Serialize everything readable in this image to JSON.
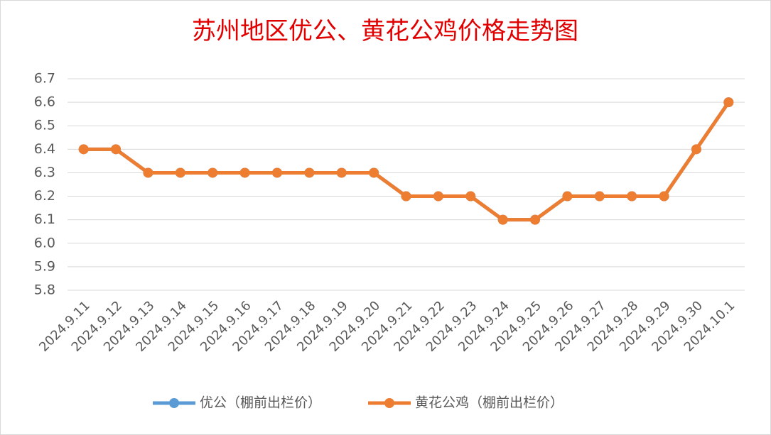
{
  "chart_data": {
    "type": "line",
    "title": "苏州地区优公、黄花公鸡价格走势图",
    "categories": [
      "2024.9.11",
      "2024.9.12",
      "2024.9.13",
      "2024.9.14",
      "2024.9.15",
      "2024.9.16",
      "2024.9.17",
      "2024.9.18",
      "2024.9.19",
      "2024.9.20",
      "2024.9.21",
      "2024.9.22",
      "2024.9.23",
      "2024.9.24",
      "2024.9.25",
      "2024.9.26",
      "2024.9.27",
      "2024.9.28",
      "2024.9.29",
      "2024.9.30",
      "2024.10.1"
    ],
    "series": [
      {
        "name": "优公（棚前出栏价）",
        "color": "#5b9bd5",
        "values": [
          6.4,
          6.4,
          6.3,
          6.3,
          6.3,
          6.3,
          6.3,
          6.3,
          6.3,
          6.3,
          6.2,
          6.2,
          6.2,
          6.1,
          6.1,
          6.2,
          6.2,
          6.2,
          6.2,
          6.4,
          6.6
        ]
      },
      {
        "name": "黄花公鸡（棚前出栏价）",
        "color": "#ed7d31",
        "values": [
          6.4,
          6.4,
          6.3,
          6.3,
          6.3,
          6.3,
          6.3,
          6.3,
          6.3,
          6.3,
          6.2,
          6.2,
          6.2,
          6.1,
          6.1,
          6.2,
          6.2,
          6.2,
          6.2,
          6.4,
          6.6
        ]
      }
    ],
    "ylim": [
      5.8,
      6.7
    ],
    "yticks": [
      5.8,
      5.9,
      {
        "value": 6,
        "label": "6.0"
      },
      6.1,
      6.2,
      6.3,
      6.4,
      6.5,
      6.6,
      6.7
    ],
    "grid": true,
    "legend": "bottom"
  }
}
